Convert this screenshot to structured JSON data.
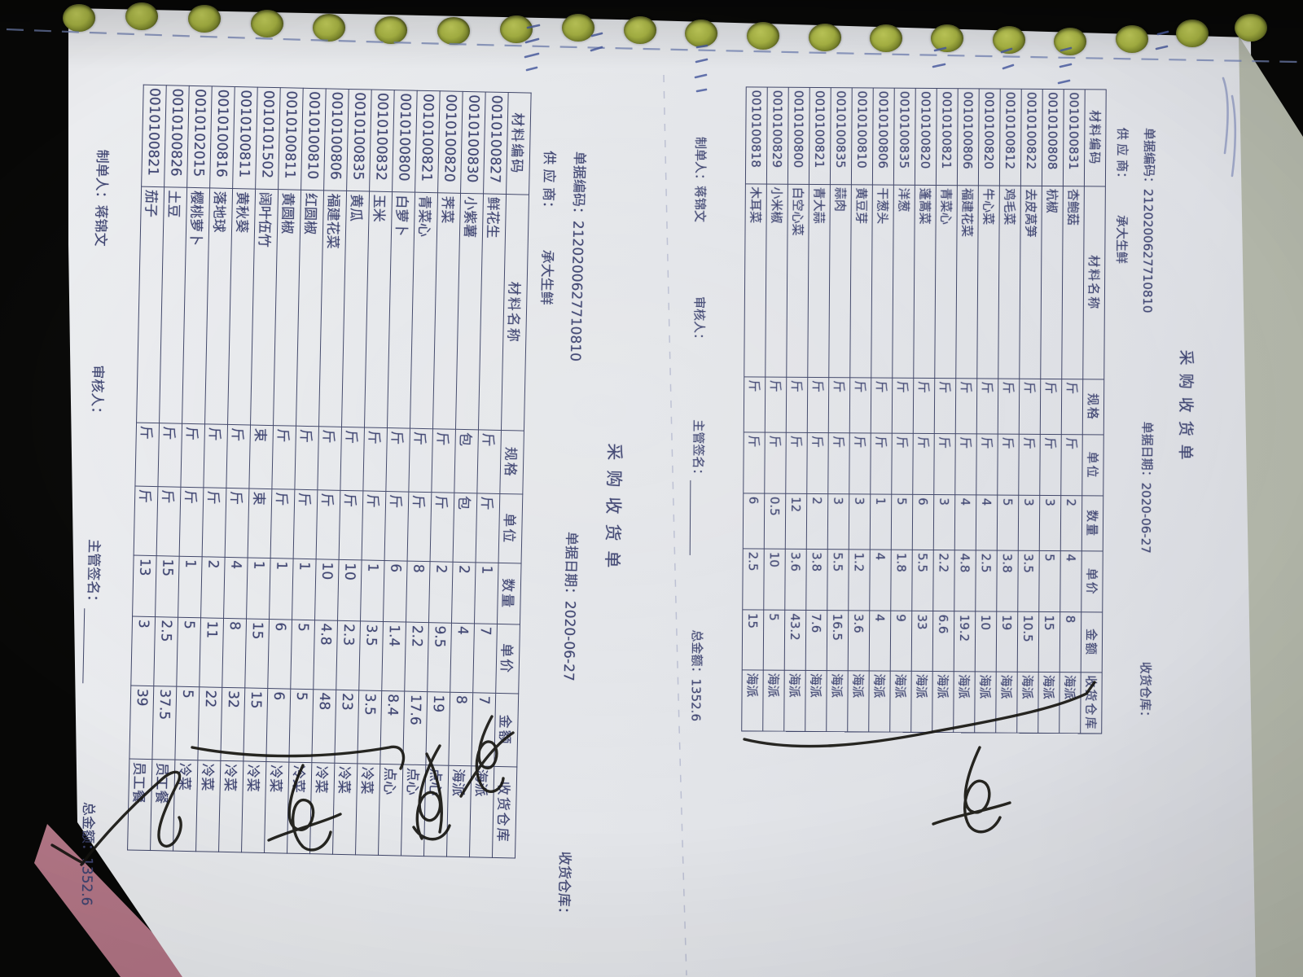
{
  "document": {
    "title": "采购收货单",
    "doc_code_label": "单据编码：",
    "doc_code": "2120200627710810",
    "doc_date_label": "单据日期：",
    "doc_date": "2020-06-27",
    "warehouse_label": "收货仓库：",
    "warehouse_value": "",
    "supplier_label": "供 应 商：",
    "supplier": "承大生鲜",
    "table_headers": [
      "材料编码",
      "材料名称",
      "规格",
      "单位",
      "数量",
      "单价",
      "金额",
      "收货仓库"
    ],
    "pages": [
      {
        "rows": [
          [
            "0010100831",
            "杏鲍菇",
            "斤",
            "斤",
            "2",
            "4",
            "8",
            "海派"
          ],
          [
            "0010100808",
            "杭椒",
            "斤",
            "斤",
            "3",
            "5",
            "15",
            "海派"
          ],
          [
            "0010100822",
            "去皮莴笋",
            "斤",
            "斤",
            "3",
            "3.5",
            "10.5",
            "海派"
          ],
          [
            "0010100812",
            "鸡毛菜",
            "斤",
            "斤",
            "5",
            "3.8",
            "19",
            "海派"
          ],
          [
            "0010100820",
            "牛心菜",
            "斤",
            "斤",
            "4",
            "2.5",
            "10",
            "海派"
          ],
          [
            "0010100806",
            "福建花菜",
            "斤",
            "斤",
            "4",
            "4.8",
            "19.2",
            "海派"
          ],
          [
            "0010100821",
            "青菜心",
            "斤",
            "斤",
            "3",
            "2.2",
            "6.6",
            "海派"
          ],
          [
            "0010100820",
            "蓬蒿菜",
            "斤",
            "斤",
            "6",
            "5.5",
            "33",
            "海派"
          ],
          [
            "0010100835",
            "洋葱",
            "斤",
            "斤",
            "5",
            "1.8",
            "9",
            "海派"
          ],
          [
            "0010100806",
            "干葱头",
            "斤",
            "斤",
            "1",
            "4",
            "4",
            "海派"
          ],
          [
            "0010100810",
            "黄豆芽",
            "斤",
            "斤",
            "3",
            "1.2",
            "3.6",
            "海派"
          ],
          [
            "0010100835",
            "蒜肉",
            "斤",
            "斤",
            "3",
            "5.5",
            "16.5",
            "海派"
          ],
          [
            "0010100821",
            "青大蒜",
            "斤",
            "斤",
            "2",
            "3.8",
            "7.6",
            "海派"
          ],
          [
            "0010100800",
            "白空心菜",
            "斤",
            "斤",
            "12",
            "3.6",
            "43.2",
            "海派"
          ],
          [
            "0010100829",
            "小米椒",
            "斤",
            "斤",
            "0.5",
            "10",
            "5",
            "海派"
          ],
          [
            "0010100818",
            "木耳菜",
            "斤",
            "斤",
            "6",
            "2.5",
            "15",
            "海派"
          ]
        ]
      },
      {
        "rows": [
          [
            "0010100827",
            "鲜花生",
            "斤",
            "斤",
            "1",
            "7",
            "7",
            "海派"
          ],
          [
            "0010100830",
            "小紫薯",
            "包",
            "包",
            "2",
            "4",
            "8",
            "海派"
          ],
          [
            "0010100820",
            "荠菜",
            "斤",
            "斤",
            "2",
            "9.5",
            "19",
            "点心"
          ],
          [
            "0010100821",
            "青菜心",
            "斤",
            "斤",
            "8",
            "2.2",
            "17.6",
            "点心"
          ],
          [
            "0010100800",
            "白萝卜",
            "斤",
            "斤",
            "6",
            "1.4",
            "8.4",
            "点心"
          ],
          [
            "0010100832",
            "玉米",
            "斤",
            "斤",
            "1",
            "3.5",
            "3.5",
            "冷菜"
          ],
          [
            "0010100835",
            "黄瓜",
            "斤",
            "斤",
            "10",
            "2.3",
            "23",
            "冷菜"
          ],
          [
            "0010100806",
            "福建花菜",
            "斤",
            "斤",
            "10",
            "4.8",
            "48",
            "冷菜"
          ],
          [
            "0010100810",
            "红圆椒",
            "斤",
            "斤",
            "1",
            "5",
            "5",
            "冷菜"
          ],
          [
            "0010100811",
            "黄圆椒",
            "斤",
            "斤",
            "1",
            "6",
            "6",
            "冷菜"
          ],
          [
            "0010101502",
            "阔叶伍竹",
            "束",
            "束",
            "1",
            "15",
            "15",
            "冷菜"
          ],
          [
            "0010100811",
            "黄秋葵",
            "斤",
            "斤",
            "4",
            "8",
            "32",
            "冷菜"
          ],
          [
            "0010100816",
            "落地球",
            "斤",
            "斤",
            "2",
            "11",
            "22",
            "冷菜"
          ],
          [
            "0010102015",
            "樱桃萝卜",
            "斤",
            "斤",
            "1",
            "5",
            "5",
            "冷菜"
          ],
          [
            "0010100826",
            "土豆",
            "斤",
            "斤",
            "15",
            "2.5",
            "37.5",
            "员工餐"
          ],
          [
            "0010100821",
            "茄子",
            "斤",
            "斤",
            "13",
            "3",
            "39",
            "员工餐"
          ]
        ]
      }
    ],
    "footer": {
      "maker_label": "制单人：",
      "maker": "蒋锦文",
      "auditor_label": "审核人：",
      "supervisor_label": "主管签名：",
      "total_label": "总金额：",
      "total": "1352.6"
    }
  }
}
